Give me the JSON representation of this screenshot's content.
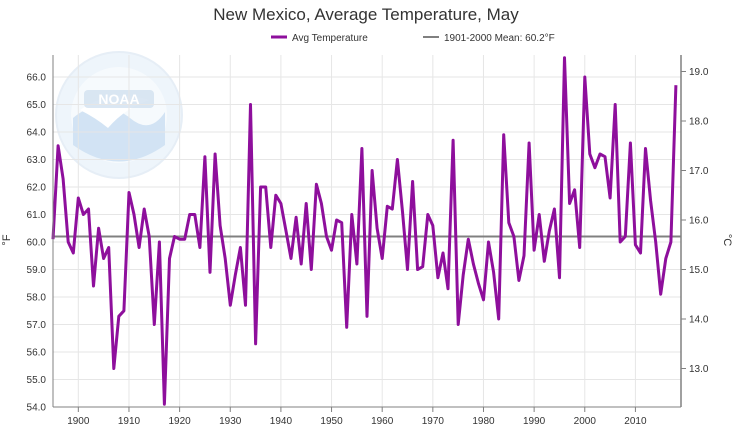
{
  "chart_data": {
    "type": "line",
    "title": "New Mexico, Average Temperature, May",
    "ylabel_left": "°F",
    "ylabel_right": "°C",
    "xlim": [
      1895,
      2019
    ],
    "ylim": [
      54.0,
      66.8
    ],
    "y_ticks": [
      "54.0",
      "55.0",
      "56.0",
      "57.0",
      "58.0",
      "59.0",
      "60.0",
      "61.0",
      "62.0",
      "63.0",
      "64.0",
      "65.0",
      "66.0"
    ],
    "y_ticks_right": [
      "13.0",
      "14.0",
      "15.0",
      "16.0",
      "17.0",
      "18.0",
      "19.0"
    ],
    "x_ticks": [
      "1900",
      "1910",
      "1920",
      "1930",
      "1940",
      "1950",
      "1960",
      "1970",
      "1980",
      "1990",
      "2000",
      "2010"
    ],
    "grid": true,
    "legend_position": "top",
    "series": [
      {
        "name": "Avg Temperature",
        "color": "#8e0f9c",
        "x": [
          1895,
          1896,
          1897,
          1898,
          1899,
          1900,
          1901,
          1902,
          1903,
          1904,
          1905,
          1906,
          1907,
          1908,
          1909,
          1910,
          1911,
          1912,
          1913,
          1914,
          1915,
          1916,
          1917,
          1918,
          1919,
          1920,
          1921,
          1922,
          1923,
          1924,
          1925,
          1926,
          1927,
          1928,
          1929,
          1930,
          1931,
          1932,
          1933,
          1934,
          1935,
          1936,
          1937,
          1938,
          1939,
          1940,
          1941,
          1942,
          1943,
          1944,
          1945,
          1946,
          1947,
          1948,
          1949,
          1950,
          1951,
          1952,
          1953,
          1954,
          1955,
          1956,
          1957,
          1958,
          1959,
          1960,
          1961,
          1962,
          1963,
          1964,
          1965,
          1966,
          1967,
          1968,
          1969,
          1970,
          1971,
          1972,
          1973,
          1974,
          1975,
          1976,
          1977,
          1978,
          1979,
          1980,
          1981,
          1982,
          1983,
          1984,
          1985,
          1986,
          1987,
          1988,
          1989,
          1990,
          1991,
          1992,
          1993,
          1994,
          1995,
          1996,
          1997,
          1998,
          1999,
          2000,
          2001,
          2002,
          2003,
          2004,
          2005,
          2006,
          2007,
          2008,
          2009,
          2010,
          2011,
          2012,
          2013,
          2014,
          2015,
          2016,
          2017,
          2018
        ],
        "values": [
          60.1,
          63.5,
          62.3,
          60.0,
          59.6,
          61.6,
          61.0,
          61.2,
          58.4,
          60.5,
          59.4,
          59.8,
          55.4,
          57.3,
          57.5,
          61.8,
          61.0,
          59.8,
          61.2,
          60.2,
          57.0,
          60.0,
          54.1,
          59.4,
          60.2,
          60.1,
          60.1,
          61.0,
          61.0,
          59.8,
          63.1,
          58.9,
          63.2,
          60.6,
          59.4,
          57.7,
          58.8,
          59.8,
          57.7,
          65.0,
          56.3,
          62.0,
          62.0,
          59.8,
          61.7,
          61.4,
          60.4,
          59.4,
          60.9,
          59.2,
          61.4,
          59.0,
          62.1,
          61.4,
          60.2,
          59.7,
          60.8,
          60.7,
          56.9,
          61.0,
          59.2,
          63.4,
          57.3,
          62.6,
          60.5,
          59.4,
          61.3,
          61.2,
          63.0,
          61.1,
          59.0,
          62.2,
          59.0,
          59.1,
          61.0,
          60.6,
          58.7,
          59.6,
          58.3,
          63.7,
          57.0,
          58.8,
          60.1,
          59.2,
          58.5,
          57.9,
          60.0,
          58.9,
          57.2,
          63.9,
          60.7,
          60.2,
          58.6,
          59.5,
          63.6,
          59.7,
          61.0,
          59.3,
          60.4,
          61.2,
          58.7,
          66.7,
          61.4,
          61.9,
          59.8,
          66.0,
          63.2,
          62.7,
          63.2,
          63.1,
          61.6,
          65.0,
          60.0,
          60.2,
          63.6,
          59.9,
          59.6,
          63.4,
          61.5,
          60.0,
          58.1,
          59.4,
          60.0,
          65.7
        ]
      },
      {
        "name": "1901-2000 Mean: 60.2°F",
        "color": "#808080",
        "value": 60.2
      }
    ]
  }
}
